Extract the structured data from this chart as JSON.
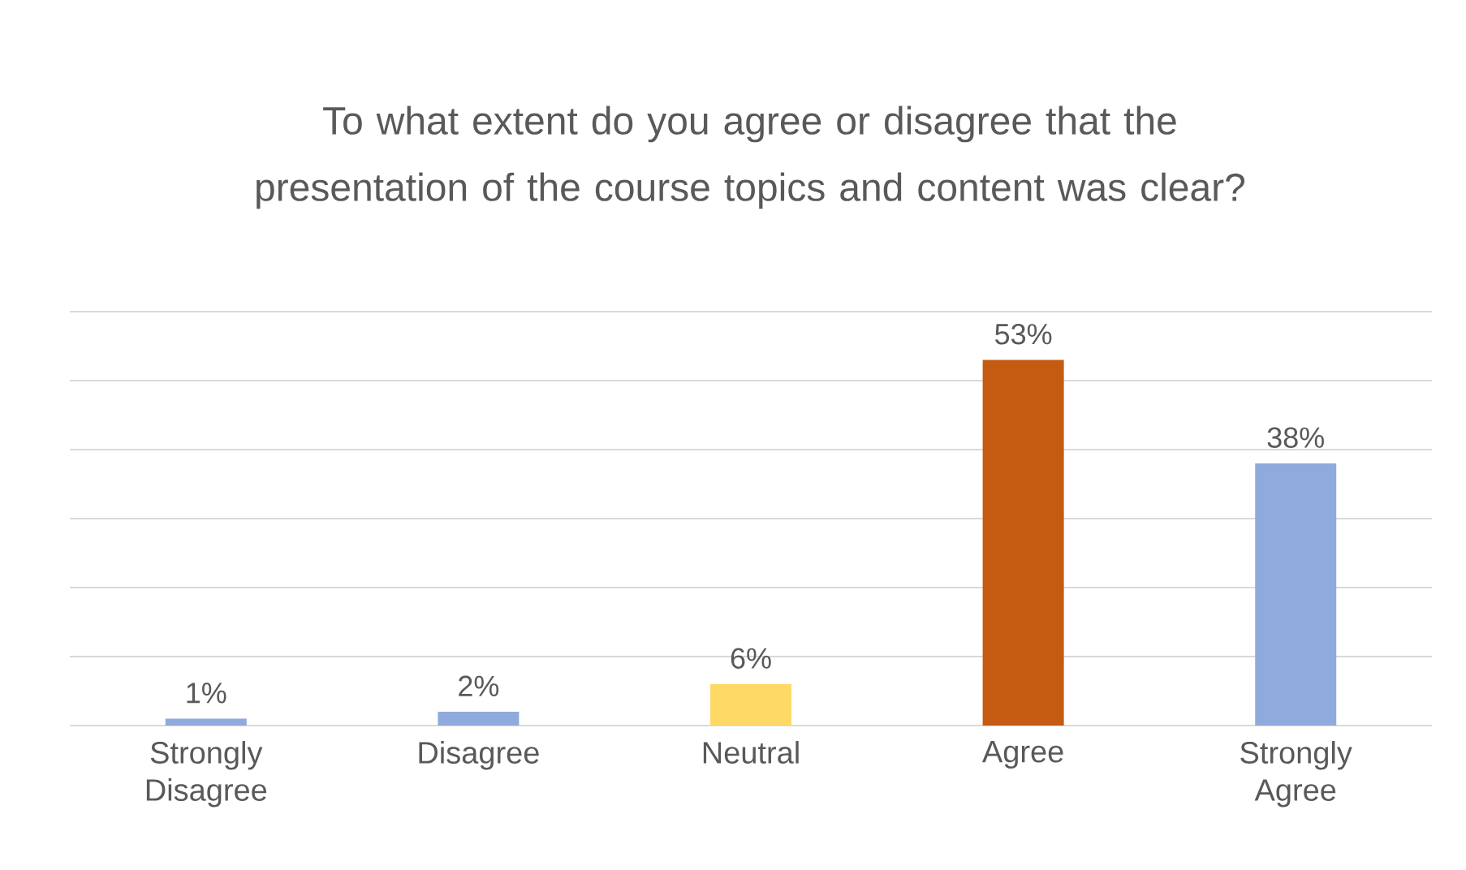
{
  "chart_data": {
    "type": "bar",
    "title": "To what extent do you agree or disagree that the presentation of the course topics and content was clear?",
    "categories": [
      "Strongly Disagree",
      "Disagree",
      "Neutral",
      "Agree",
      "Strongly Agree"
    ],
    "values": [
      1,
      2,
      6,
      53,
      38
    ],
    "value_labels": [
      "1%",
      "2%",
      "6%",
      "53%",
      "38%"
    ],
    "colors": [
      "#8faadc",
      "#8faadc",
      "#ffd966",
      "#c55a11",
      "#8faadc"
    ],
    "ylim": [
      0,
      60
    ],
    "yticks": [
      {
        "value": 0,
        "label": null
      },
      {
        "value": 10,
        "label": null
      },
      {
        "value": 20,
        "label": null
      },
      {
        "value": 30,
        "label": null
      },
      {
        "value": 40,
        "label": null
      },
      {
        "value": 50,
        "label": null
      },
      {
        "value": 60,
        "label": null
      }
    ],
    "tick_labels": "x",
    "grid": "y"
  }
}
